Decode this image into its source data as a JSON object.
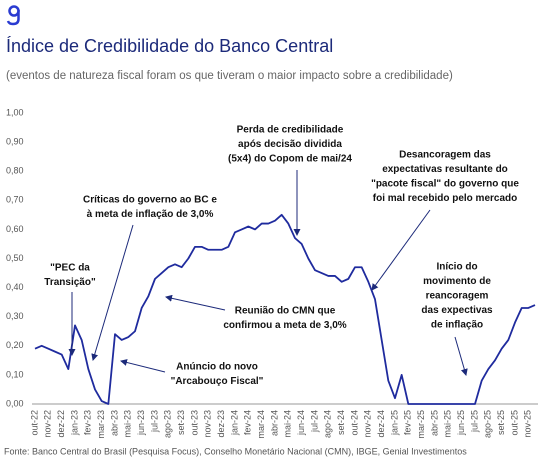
{
  "chart_data": {
    "type": "line",
    "title": "Índice de Credibilidade do Banco Central",
    "subtitle": "(eventos de natureza fiscal foram os que tiveram o maior impacto sobre a credibilidade)",
    "source": "Fonte: Banco Central do Brasil (Pesquisa Focus), Conselho Monetário Nacional (CMN), IBGE, Genial Investimentos",
    "color": "#1f2b9e",
    "categories": [
      "out-22",
      null,
      "nov-22",
      null,
      "dez-22",
      null,
      "jan-23",
      null,
      "fev-23",
      null,
      "mar-23",
      null,
      "abr-23",
      null,
      "mai-23",
      null,
      "jun-23",
      null,
      "jul-23",
      null,
      "ago-23",
      null,
      "set-23",
      null,
      "out-23",
      null,
      "nov-23",
      null,
      "dez-23",
      null,
      "jan-24",
      null,
      "fev-24",
      null,
      "mar-24",
      null,
      "abr-24",
      null,
      "mai-24",
      null,
      "jun-24",
      null,
      "jul-24",
      null,
      "ago-24",
      null,
      "set-24",
      null,
      "out-24",
      null,
      "nov-24",
      null,
      "dez-24",
      null,
      "jan-25",
      null,
      "fev-25",
      null,
      "mar-25",
      null,
      "abr-25",
      null,
      "mai-25",
      null,
      "jun-25",
      null,
      "jul-25",
      null,
      "ago-25",
      null,
      "set-25",
      null,
      "out-25",
      null,
      "nov-25",
      null
    ],
    "values": [
      0.19,
      0.2,
      0.19,
      0.18,
      0.17,
      0.12,
      0.27,
      0.22,
      0.12,
      0.05,
      0.01,
      0.0,
      0.24,
      0.22,
      0.23,
      0.25,
      0.33,
      0.37,
      0.43,
      0.45,
      0.47,
      0.48,
      0.47,
      0.5,
      0.54,
      0.54,
      0.53,
      0.53,
      0.53,
      0.54,
      0.59,
      0.6,
      0.61,
      0.6,
      0.62,
      0.62,
      0.63,
      0.65,
      0.62,
      0.57,
      0.55,
      0.5,
      0.46,
      0.45,
      0.44,
      0.44,
      0.42,
      0.43,
      0.47,
      0.47,
      0.42,
      0.36,
      0.22,
      0.08,
      0.02,
      0.1,
      0.0,
      0.0,
      0.0,
      0.0,
      0.0,
      0.0,
      0.0,
      0.0,
      0.0,
      0.0,
      0.0,
      0.08,
      0.12,
      0.15,
      0.19,
      0.22,
      0.28,
      0.33,
      0.33,
      0.34
    ],
    "ylim": [
      0,
      1
    ],
    "yticks": [
      {
        "value": 0,
        "label": "0,00"
      },
      {
        "value": 0.1,
        "label": "0,10"
      },
      {
        "value": 0.2,
        "label": "0,20"
      },
      {
        "value": 0.3,
        "label": "0,30"
      },
      {
        "value": 0.4,
        "label": "0,40"
      },
      {
        "value": 0.5,
        "label": "0,50"
      },
      {
        "value": 0.6,
        "label": "0,60"
      },
      {
        "value": 0.7,
        "label": "0,70"
      },
      {
        "value": 0.8,
        "label": "0,80"
      },
      {
        "value": 0.9,
        "label": "0,90"
      },
      {
        "value": 1,
        "label": "1,00"
      }
    ],
    "annotations": [
      [
        "Críticas do governo ao BC e",
        "à meta de inflação de 3,0%"
      ],
      [
        "\"PEC da",
        "Transição\""
      ],
      [
        "Perda de credibilidade",
        "após decisão dividida",
        "(5x4) do Copom de mai/24"
      ],
      [
        "Desancoragem das",
        "expectativas resultante do",
        "\"pacote fiscal\" do governo que",
        "foi mal recebido pelo mercado"
      ],
      [
        "Reunião do CMN que",
        "confirmou a meta de 3,0%"
      ],
      [
        "Anúncio do novo",
        "\"Arcabouço Fiscal\""
      ],
      [
        "Início do",
        "movimento de",
        "reancoragem",
        "das expectivas",
        "de inflação"
      ]
    ]
  }
}
